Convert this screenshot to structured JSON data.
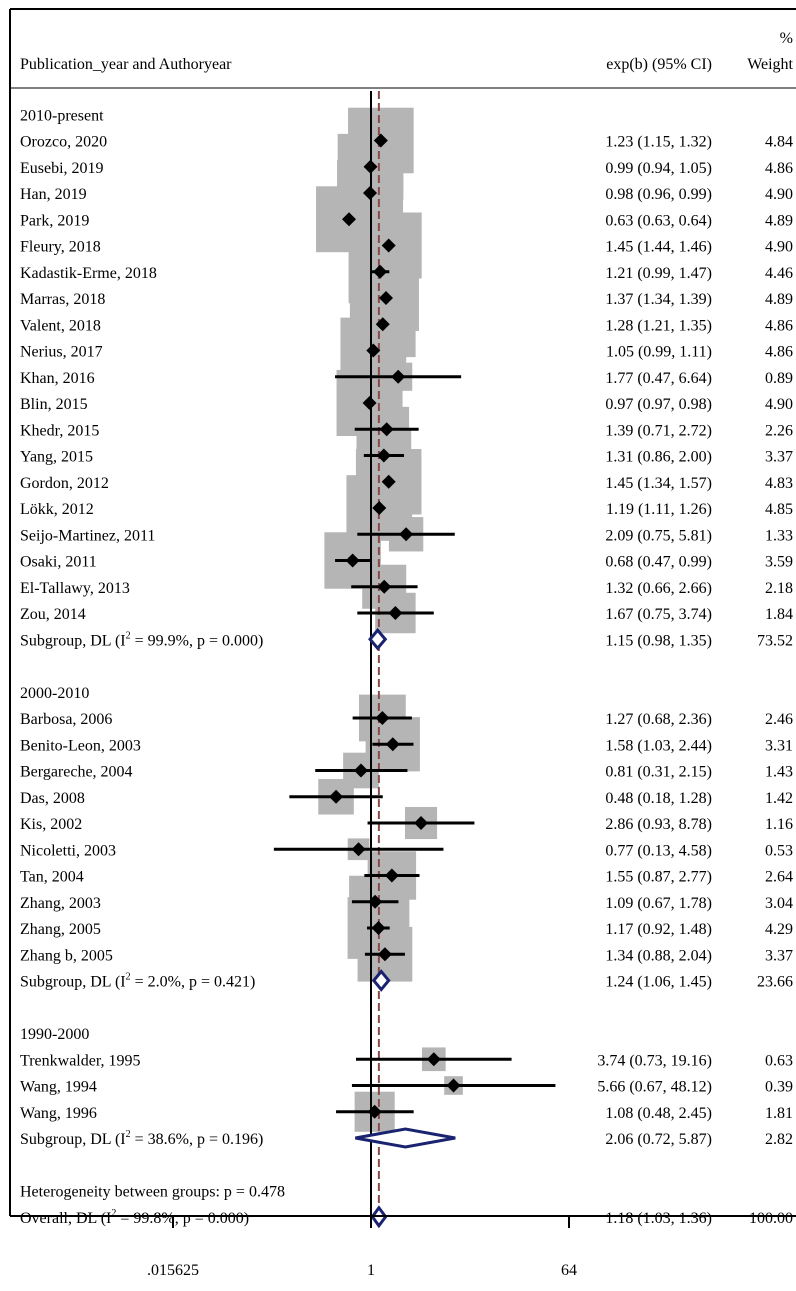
{
  "chart_data": {
    "type": "forest",
    "header": {
      "study_col": "Publication_year and Authoryear",
      "effect_col": "exp(b) (95% CI)",
      "weight_col_top": "%",
      "weight_col": "Weight"
    },
    "x_scale": "log2",
    "xlim": [
      0.015625,
      64
    ],
    "xticks": [
      0.015625,
      1,
      64
    ],
    "xtick_labels": [
      ".015625",
      "1",
      "64"
    ],
    "null_line": 1,
    "overall_line": 1.18,
    "groups": [
      {
        "label": "2010-present",
        "studies": [
          {
            "name": "Orozco, 2020",
            "est": 1.23,
            "lo": 1.15,
            "hi": 1.32,
            "ci_text": "1.23 (1.15, 1.32)",
            "weight": 4.84,
            "weight_text": "4.84"
          },
          {
            "name": "Eusebi, 2019",
            "est": 0.99,
            "lo": 0.94,
            "hi": 1.05,
            "ci_text": "0.99 (0.94, 1.05)",
            "weight": 4.86,
            "weight_text": "4.86"
          },
          {
            "name": "Han, 2019",
            "est": 0.98,
            "lo": 0.96,
            "hi": 0.99,
            "ci_text": "0.98 (0.96, 0.99)",
            "weight": 4.9,
            "weight_text": "4.90"
          },
          {
            "name": "Park, 2019",
            "est": 0.63,
            "lo": 0.63,
            "hi": 0.64,
            "ci_text": "0.63 (0.63, 0.64)",
            "weight": 4.89,
            "weight_text": "4.89"
          },
          {
            "name": "Fleury, 2018",
            "est": 1.45,
            "lo": 1.44,
            "hi": 1.46,
            "ci_text": "1.45 (1.44, 1.46)",
            "weight": 4.9,
            "weight_text": "4.90"
          },
          {
            "name": "Kadastik-Erme, 2018",
            "est": 1.21,
            "lo": 0.99,
            "hi": 1.47,
            "ci_text": "1.21 (0.99, 1.47)",
            "weight": 4.46,
            "weight_text": "4.46"
          },
          {
            "name": "Marras, 2018",
            "est": 1.37,
            "lo": 1.34,
            "hi": 1.39,
            "ci_text": "1.37 (1.34, 1.39)",
            "weight": 4.89,
            "weight_text": "4.89"
          },
          {
            "name": "Valent, 2018",
            "est": 1.28,
            "lo": 1.21,
            "hi": 1.35,
            "ci_text": "1.28 (1.21, 1.35)",
            "weight": 4.86,
            "weight_text": "4.86"
          },
          {
            "name": "Nerius, 2017",
            "est": 1.05,
            "lo": 0.99,
            "hi": 1.11,
            "ci_text": "1.05 (0.99, 1.11)",
            "weight": 4.86,
            "weight_text": "4.86"
          },
          {
            "name": "Khan, 2016",
            "est": 1.77,
            "lo": 0.47,
            "hi": 6.64,
            "ci_text": "1.77 (0.47, 6.64)",
            "weight": 0.89,
            "weight_text": "0.89"
          },
          {
            "name": "Blin, 2015",
            "est": 0.97,
            "lo": 0.97,
            "hi": 0.98,
            "ci_text": "0.97 (0.97, 0.98)",
            "weight": 4.9,
            "weight_text": "4.90"
          },
          {
            "name": "Khedr, 2015",
            "est": 1.39,
            "lo": 0.71,
            "hi": 2.72,
            "ci_text": "1.39 (0.71, 2.72)",
            "weight": 2.26,
            "weight_text": "2.26"
          },
          {
            "name": "Yang, 2015",
            "est": 1.31,
            "lo": 0.86,
            "hi": 2.0,
            "ci_text": "1.31 (0.86, 2.00)",
            "weight": 3.37,
            "weight_text": "3.37"
          },
          {
            "name": "Gordon, 2012",
            "est": 1.45,
            "lo": 1.34,
            "hi": 1.57,
            "ci_text": "1.45 (1.34, 1.57)",
            "weight": 4.83,
            "weight_text": "4.83"
          },
          {
            "name": "Lökk, 2012",
            "est": 1.19,
            "lo": 1.11,
            "hi": 1.26,
            "ci_text": "1.19 (1.11, 1.26)",
            "weight": 4.85,
            "weight_text": "4.85"
          },
          {
            "name": "Seijo-Martinez, 2011",
            "est": 2.09,
            "lo": 0.75,
            "hi": 5.81,
            "ci_text": "2.09 (0.75, 5.81)",
            "weight": 1.33,
            "weight_text": "1.33"
          },
          {
            "name": "Osaki, 2011",
            "est": 0.68,
            "lo": 0.47,
            "hi": 0.99,
            "ci_text": "0.68 (0.47, 0.99)",
            "weight": 3.59,
            "weight_text": "3.59"
          },
          {
            "name": "El-Tallawy, 2013",
            "est": 1.32,
            "lo": 0.66,
            "hi": 2.66,
            "ci_text": "1.32 (0.66, 2.66)",
            "weight": 2.18,
            "weight_text": "2.18"
          },
          {
            "name": "Zou, 2014",
            "est": 1.67,
            "lo": 0.75,
            "hi": 3.74,
            "ci_text": "1.67 (0.75, 3.74)",
            "weight": 1.84,
            "weight_text": "1.84"
          }
        ],
        "subgroup": {
          "label_pre": "Subgroup, DL (I",
          "sup": "2",
          "label_post": " = 99.9%, p = 0.000)",
          "est": 1.15,
          "lo": 0.98,
          "hi": 1.35,
          "ci_text": "1.15 (0.98, 1.35)",
          "weight_text": "73.52"
        }
      },
      {
        "label": "2000-2010",
        "studies": [
          {
            "name": "Barbosa, 2006",
            "est": 1.27,
            "lo": 0.68,
            "hi": 2.36,
            "ci_text": "1.27 (0.68, 2.36)",
            "weight": 2.46,
            "weight_text": "2.46"
          },
          {
            "name": "Benito-Leon, 2003",
            "est": 1.58,
            "lo": 1.03,
            "hi": 2.44,
            "ci_text": "1.58 (1.03, 2.44)",
            "weight": 3.31,
            "weight_text": "3.31"
          },
          {
            "name": "Bergareche, 2004",
            "est": 0.81,
            "lo": 0.31,
            "hi": 2.15,
            "ci_text": "0.81 (0.31, 2.15)",
            "weight": 1.43,
            "weight_text": "1.43"
          },
          {
            "name": "Das, 2008",
            "est": 0.48,
            "lo": 0.18,
            "hi": 1.28,
            "ci_text": "0.48 (0.18, 1.28)",
            "weight": 1.42,
            "weight_text": "1.42"
          },
          {
            "name": "Kis, 2002",
            "est": 2.86,
            "lo": 0.93,
            "hi": 8.78,
            "ci_text": "2.86 (0.93, 8.78)",
            "weight": 1.16,
            "weight_text": "1.16"
          },
          {
            "name": "Nicoletti, 2003",
            "est": 0.77,
            "lo": 0.13,
            "hi": 4.58,
            "ci_text": "0.77 (0.13, 4.58)",
            "weight": 0.53,
            "weight_text": "0.53"
          },
          {
            "name": "Tan, 2004",
            "est": 1.55,
            "lo": 0.87,
            "hi": 2.77,
            "ci_text": "1.55 (0.87, 2.77)",
            "weight": 2.64,
            "weight_text": "2.64"
          },
          {
            "name": "Zhang, 2003",
            "est": 1.09,
            "lo": 0.67,
            "hi": 1.78,
            "ci_text": "1.09 (0.67, 1.78)",
            "weight": 3.04,
            "weight_text": "3.04"
          },
          {
            "name": "Zhang, 2005",
            "est": 1.17,
            "lo": 0.92,
            "hi": 1.48,
            "ci_text": "1.17 (0.92, 1.48)",
            "weight": 4.29,
            "weight_text": "4.29"
          },
          {
            "name": "Zhang b, 2005",
            "est": 1.34,
            "lo": 0.88,
            "hi": 2.04,
            "ci_text": "1.34 (0.88, 2.04)",
            "weight": 3.37,
            "weight_text": "3.37"
          }
        ],
        "subgroup": {
          "label_pre": "Subgroup, DL (I",
          "sup": "2",
          "label_post": " = 2.0%, p = 0.421)",
          "est": 1.24,
          "lo": 1.06,
          "hi": 1.45,
          "ci_text": "1.24 (1.06, 1.45)",
          "weight_text": "23.66"
        }
      },
      {
        "label": "1990-2000",
        "studies": [
          {
            "name": "Trenkwalder, 1995",
            "est": 3.74,
            "lo": 0.73,
            "hi": 19.16,
            "ci_text": "3.74 (0.73, 19.16)",
            "weight": 0.63,
            "weight_text": "0.63"
          },
          {
            "name": "Wang, 1994",
            "est": 5.66,
            "lo": 0.67,
            "hi": 48.12,
            "ci_text": "5.66 (0.67, 48.12)",
            "weight": 0.39,
            "weight_text": "0.39"
          },
          {
            "name": "Wang, 1996",
            "est": 1.08,
            "lo": 0.48,
            "hi": 2.45,
            "ci_text": "1.08 (0.48, 2.45)",
            "weight": 1.81,
            "weight_text": "1.81"
          }
        ],
        "subgroup": {
          "label_pre": "Subgroup, DL (I",
          "sup": "2",
          "label_post": " = 38.6%, p = 0.196)",
          "est": 2.06,
          "lo": 0.72,
          "hi": 5.87,
          "ci_text": "2.06 (0.72, 5.87)",
          "weight_text": "2.82"
        }
      }
    ],
    "heterogeneity": "Heterogeneity between groups: p = 0.478",
    "overall": {
      "label_pre": "Overall, DL (I",
      "sup": "2",
      "label_post": " = 99.8%, p = 0.000)",
      "est": 1.18,
      "lo": 1.03,
      "hi": 1.36,
      "ci_text": "1.18 (1.03, 1.36)",
      "weight_text": "100.00"
    },
    "colors": {
      "box": "#b5b5b5",
      "diamond": "#1a2370",
      "overall_line": "#8a4a4a",
      "marker": "#000000"
    }
  }
}
